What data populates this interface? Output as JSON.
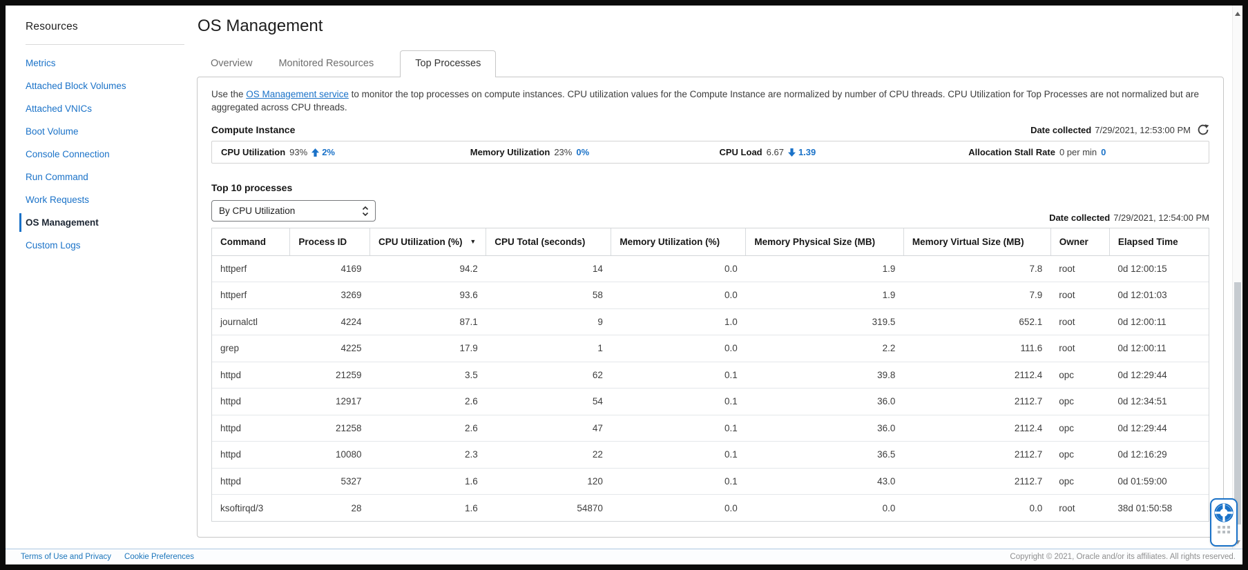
{
  "sidebar": {
    "title": "Resources",
    "items": [
      {
        "label": "Metrics",
        "active": false
      },
      {
        "label": "Attached Block Volumes",
        "active": false
      },
      {
        "label": "Attached VNICs",
        "active": false
      },
      {
        "label": "Boot Volume",
        "active": false
      },
      {
        "label": "Console Connection",
        "active": false
      },
      {
        "label": "Run Command",
        "active": false
      },
      {
        "label": "Work Requests",
        "active": false
      },
      {
        "label": "OS Management",
        "active": true
      },
      {
        "label": "Custom Logs",
        "active": false
      }
    ]
  },
  "header": {
    "title": "OS Management"
  },
  "tabs": [
    {
      "label": "Overview",
      "active": false
    },
    {
      "label": "Monitored Resources",
      "active": false
    },
    {
      "label": "Top Processes",
      "active": true
    }
  ],
  "description": {
    "pre_link": "Use the ",
    "link": "OS Management service",
    "post_link": " to monitor the top processes on compute instances. CPU utilization values for the Compute Instance are normalized by number of CPU threads. CPU Utilization for Top Processes are not normalized but are aggregated across CPU threads."
  },
  "compute_instance": {
    "heading": "Compute Instance",
    "date_collected_label": "Date collected",
    "date_collected_value": "7/29/2021, 12:53:00 PM",
    "metrics": [
      {
        "label": "CPU Utilization",
        "value": "93%",
        "arrow": "up",
        "delta": "2%"
      },
      {
        "label": "Memory Utilization",
        "value": "23%",
        "arrow": "none",
        "delta": "0%"
      },
      {
        "label": "CPU Load",
        "value": "6.67",
        "arrow": "down",
        "delta": "1.39"
      },
      {
        "label": "Allocation Stall Rate",
        "value": "0 per min",
        "arrow": "none",
        "delta": "0"
      }
    ]
  },
  "top_processes": {
    "heading": "Top 10 processes",
    "sort_dropdown": {
      "value": "By CPU Utilization"
    },
    "date_collected_label": "Date collected",
    "date_collected_value": "7/29/2021, 12:54:00 PM",
    "table": {
      "columns": [
        "Command",
        "Process ID",
        "CPU Utilization (%)",
        "CPU Total (seconds)",
        "Memory Utilization (%)",
        "Memory Physical Size (MB)",
        "Memory Virtual Size (MB)",
        "Owner",
        "Elapsed Time"
      ],
      "sorted_column": "CPU Utilization (%)",
      "sort_indicator": "▼",
      "rows": [
        [
          "httperf",
          "4169",
          "94.2",
          "14",
          "0.0",
          "1.9",
          "7.8",
          "root",
          "0d 12:00:15"
        ],
        [
          "httperf",
          "3269",
          "93.6",
          "58",
          "0.0",
          "1.9",
          "7.9",
          "root",
          "0d 12:01:03"
        ],
        [
          "journalctl",
          "4224",
          "87.1",
          "9",
          "1.0",
          "319.5",
          "652.1",
          "root",
          "0d 12:00:11"
        ],
        [
          "grep",
          "4225",
          "17.9",
          "1",
          "0.0",
          "2.2",
          "111.6",
          "root",
          "0d 12:00:11"
        ],
        [
          "httpd",
          "21259",
          "3.5",
          "62",
          "0.1",
          "39.8",
          "2112.4",
          "opc",
          "0d 12:29:44"
        ],
        [
          "httpd",
          "12917",
          "2.6",
          "54",
          "0.1",
          "36.0",
          "2112.7",
          "opc",
          "0d 12:34:51"
        ],
        [
          "httpd",
          "21258",
          "2.6",
          "47",
          "0.1",
          "36.0",
          "2112.4",
          "opc",
          "0d 12:29:44"
        ],
        [
          "httpd",
          "10080",
          "2.3",
          "22",
          "0.1",
          "36.5",
          "2112.7",
          "opc",
          "0d 12:16:29"
        ],
        [
          "httpd",
          "5327",
          "1.6",
          "120",
          "0.1",
          "43.0",
          "2112.7",
          "opc",
          "0d 01:59:00"
        ],
        [
          "ksoftirqd/3",
          "28",
          "1.6",
          "54870",
          "0.0",
          "0.0",
          "0.0",
          "root",
          "38d 01:50:58"
        ]
      ]
    }
  },
  "footer": {
    "links": [
      "Terms of Use and Privacy",
      "Cookie Preferences"
    ],
    "copyright": "Copyright © 2021, Oracle and/or its affiliates. All rights reserved."
  },
  "colors": {
    "link": "#1a72c8",
    "accent": "#1a72c8",
    "active_tab_text": "#333333",
    "frame": "#0b0b0b"
  }
}
